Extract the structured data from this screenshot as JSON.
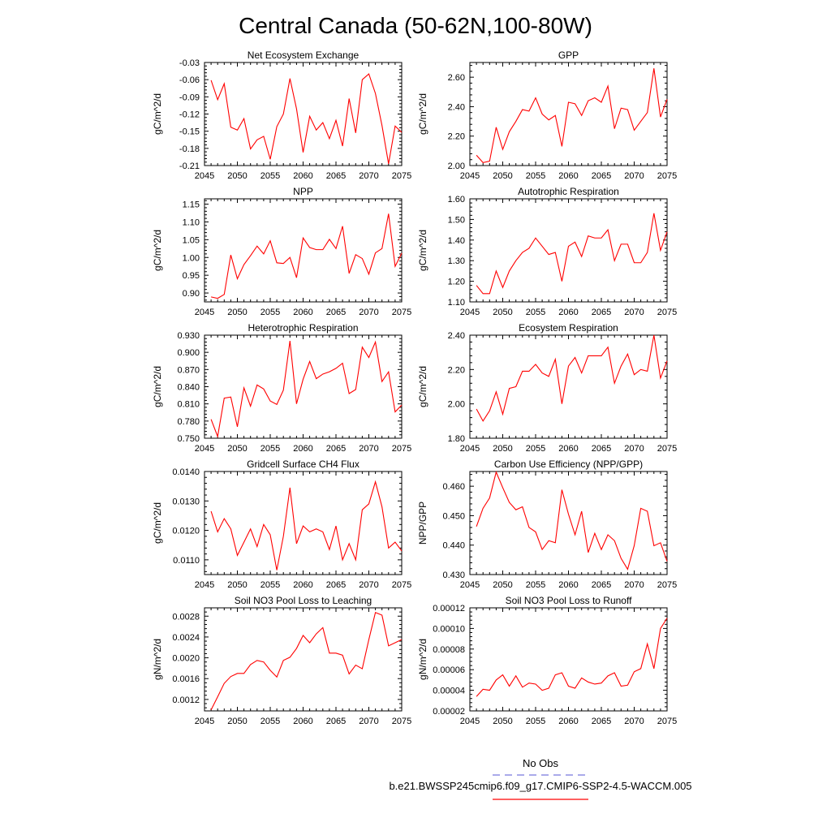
{
  "figure": {
    "title": "Central Canada (50-62N,100-80W)",
    "legend": [
      {
        "label": "No Obs",
        "color": "#7777dd",
        "dash": "dashed"
      },
      {
        "label": "b.e21.BWSSP245cmip6.f09_g17.CMIP6-SSP2-4.5-WACCM.005",
        "color": "#ff0000",
        "dash": "solid"
      }
    ]
  },
  "chart_data": [
    {
      "type": "line",
      "title": "Net Ecosystem Exchange",
      "ylabel": "gC/m^2/d",
      "xlim": [
        2045,
        2075
      ],
      "ylim": [
        -0.21,
        -0.03
      ],
      "xticks": [
        2045,
        2050,
        2055,
        2060,
        2065,
        2070,
        2075
      ],
      "xtick_labels": [
        "2045",
        "2050",
        "2055",
        "2060",
        "2065",
        "2070",
        "2075"
      ],
      "yticks": [
        -0.21,
        -0.18,
        -0.15,
        -0.12,
        -0.09,
        -0.06,
        -0.03
      ],
      "ytick_labels": [
        "-0.21",
        "-0.18",
        "-0.15",
        "-0.12",
        "-0.09",
        "-0.06",
        "-0.03"
      ],
      "series": [
        {
          "color": "#ff0000",
          "x": [
            2046,
            2047,
            2048,
            2049,
            2050,
            2051,
            2052,
            2053,
            2054,
            2055,
            2056,
            2057,
            2058,
            2059,
            2060,
            2061,
            2062,
            2063,
            2064,
            2065,
            2066,
            2067,
            2068,
            2069,
            2070,
            2071,
            2072,
            2073,
            2074,
            2075
          ],
          "y": [
            -0.061,
            -0.095,
            -0.067,
            -0.143,
            -0.148,
            -0.128,
            -0.181,
            -0.165,
            -0.159,
            -0.199,
            -0.142,
            -0.12,
            -0.058,
            -0.111,
            -0.187,
            -0.124,
            -0.148,
            -0.135,
            -0.163,
            -0.131,
            -0.176,
            -0.093,
            -0.153,
            -0.06,
            -0.05,
            -0.084,
            -0.14,
            -0.207,
            -0.141,
            -0.152
          ]
        }
      ]
    },
    {
      "type": "line",
      "title": "GPP",
      "ylabel": "gC/m^2/d",
      "xlim": [
        2045,
        2075
      ],
      "ylim": [
        2.0,
        2.7
      ],
      "xticks": [
        2045,
        2050,
        2055,
        2060,
        2065,
        2070,
        2075
      ],
      "xtick_labels": [
        "2045",
        "2050",
        "2055",
        "2060",
        "2065",
        "2070",
        "2075"
      ],
      "yticks": [
        2.0,
        2.2,
        2.4,
        2.6
      ],
      "ytick_labels": [
        "2.00",
        "2.20",
        "2.40",
        "2.60"
      ],
      "series": [
        {
          "color": "#ff0000",
          "x": [
            2046,
            2047,
            2048,
            2049,
            2050,
            2051,
            2052,
            2053,
            2054,
            2055,
            2056,
            2057,
            2058,
            2059,
            2060,
            2061,
            2062,
            2063,
            2064,
            2065,
            2066,
            2067,
            2068,
            2069,
            2070,
            2071,
            2072,
            2073,
            2074,
            2075
          ],
          "y": [
            2.07,
            2.02,
            2.03,
            2.26,
            2.11,
            2.23,
            2.3,
            2.38,
            2.37,
            2.46,
            2.35,
            2.31,
            2.34,
            2.13,
            2.43,
            2.42,
            2.34,
            2.44,
            2.46,
            2.43,
            2.54,
            2.25,
            2.39,
            2.38,
            2.24,
            2.3,
            2.36,
            2.66,
            2.33,
            2.45
          ]
        }
      ]
    },
    {
      "type": "line",
      "title": "NPP",
      "ylabel": "gC/m^2/d",
      "xlim": [
        2045,
        2075
      ],
      "ylim": [
        0.875,
        1.165
      ],
      "xticks": [
        2045,
        2050,
        2055,
        2060,
        2065,
        2070,
        2075
      ],
      "xtick_labels": [
        "2045",
        "2050",
        "2055",
        "2060",
        "2065",
        "2070",
        "2075"
      ],
      "yticks": [
        0.9,
        0.95,
        1.0,
        1.05,
        1.1,
        1.15
      ],
      "ytick_labels": [
        "0.90",
        "0.95",
        "1.00",
        "1.05",
        "1.10",
        "1.15"
      ],
      "series": [
        {
          "color": "#ff0000",
          "x": [
            2046,
            2047,
            2048,
            2049,
            2050,
            2051,
            2052,
            2053,
            2054,
            2055,
            2056,
            2057,
            2058,
            2059,
            2060,
            2061,
            2062,
            2063,
            2064,
            2065,
            2066,
            2067,
            2068,
            2069,
            2070,
            2071,
            2072,
            2073,
            2074,
            2075
          ],
          "y": [
            0.889,
            0.885,
            0.896,
            1.007,
            0.94,
            0.98,
            1.005,
            1.032,
            1.01,
            1.047,
            0.985,
            0.983,
            1.0,
            0.943,
            1.055,
            1.028,
            1.022,
            1.022,
            1.051,
            1.025,
            1.088,
            0.955,
            1.008,
            0.997,
            0.953,
            1.013,
            1.025,
            1.123,
            0.975,
            1.012
          ]
        }
      ]
    },
    {
      "type": "line",
      "title": "Autotrophic Respiration",
      "ylabel": "gC/m^2/d",
      "xlim": [
        2045,
        2075
      ],
      "ylim": [
        1.1,
        1.6
      ],
      "xticks": [
        2045,
        2050,
        2055,
        2060,
        2065,
        2070,
        2075
      ],
      "xtick_labels": [
        "2045",
        "2050",
        "2055",
        "2060",
        "2065",
        "2070",
        "2075"
      ],
      "yticks": [
        1.1,
        1.2,
        1.3,
        1.4,
        1.5,
        1.6
      ],
      "ytick_labels": [
        "1.10",
        "1.20",
        "1.30",
        "1.40",
        "1.50",
        "1.60"
      ],
      "series": [
        {
          "color": "#ff0000",
          "x": [
            2046,
            2047,
            2048,
            2049,
            2050,
            2051,
            2052,
            2053,
            2054,
            2055,
            2056,
            2057,
            2058,
            2059,
            2060,
            2061,
            2062,
            2063,
            2064,
            2065,
            2066,
            2067,
            2068,
            2069,
            2070,
            2071,
            2072,
            2073,
            2074,
            2075
          ],
          "y": [
            1.18,
            1.14,
            1.14,
            1.25,
            1.17,
            1.25,
            1.3,
            1.34,
            1.36,
            1.41,
            1.37,
            1.33,
            1.34,
            1.2,
            1.37,
            1.39,
            1.32,
            1.42,
            1.41,
            1.41,
            1.45,
            1.3,
            1.38,
            1.38,
            1.29,
            1.29,
            1.34,
            1.53,
            1.35,
            1.44
          ]
        }
      ]
    },
    {
      "type": "line",
      "title": "Heterotrophic Respiration",
      "ylabel": "gC/m^2/d",
      "xlim": [
        2045,
        2075
      ],
      "ylim": [
        0.75,
        0.93
      ],
      "xticks": [
        2045,
        2050,
        2055,
        2060,
        2065,
        2070,
        2075
      ],
      "xtick_labels": [
        "2045",
        "2050",
        "2055",
        "2060",
        "2065",
        "2070",
        "2075"
      ],
      "yticks": [
        0.75,
        0.78,
        0.81,
        0.84,
        0.87,
        0.9,
        0.93
      ],
      "ytick_labels": [
        "0.750",
        "0.780",
        "0.810",
        "0.840",
        "0.870",
        "0.900",
        "0.930"
      ],
      "series": [
        {
          "color": "#ff0000",
          "x": [
            2046,
            2047,
            2048,
            2049,
            2050,
            2051,
            2052,
            2053,
            2054,
            2055,
            2056,
            2057,
            2058,
            2059,
            2060,
            2061,
            2062,
            2063,
            2064,
            2065,
            2066,
            2067,
            2068,
            2069,
            2070,
            2071,
            2072,
            2073,
            2074,
            2075
          ],
          "y": [
            0.783,
            0.753,
            0.82,
            0.822,
            0.77,
            0.838,
            0.806,
            0.843,
            0.836,
            0.815,
            0.809,
            0.834,
            0.92,
            0.81,
            0.853,
            0.884,
            0.854,
            0.862,
            0.866,
            0.872,
            0.881,
            0.828,
            0.835,
            0.909,
            0.891,
            0.918,
            0.849,
            0.866,
            0.796,
            0.808
          ]
        }
      ]
    },
    {
      "type": "line",
      "title": "Ecosystem Respiration",
      "ylabel": "gC/m^2/d",
      "xlim": [
        2045,
        2075
      ],
      "ylim": [
        1.8,
        2.4
      ],
      "xticks": [
        2045,
        2050,
        2055,
        2060,
        2065,
        2070,
        2075
      ],
      "xtick_labels": [
        "2045",
        "2050",
        "2055",
        "2060",
        "2065",
        "2070",
        "2075"
      ],
      "yticks": [
        1.8,
        2.0,
        2.2,
        2.4
      ],
      "ytick_labels": [
        "1.80",
        "2.00",
        "2.20",
        "2.40"
      ],
      "series": [
        {
          "color": "#ff0000",
          "x": [
            2046,
            2047,
            2048,
            2049,
            2050,
            2051,
            2052,
            2053,
            2054,
            2055,
            2056,
            2057,
            2058,
            2059,
            2060,
            2061,
            2062,
            2063,
            2064,
            2065,
            2066,
            2067,
            2068,
            2069,
            2070,
            2071,
            2072,
            2073,
            2074,
            2075
          ],
          "y": [
            1.97,
            1.9,
            1.96,
            2.07,
            1.94,
            2.09,
            2.1,
            2.19,
            2.19,
            2.23,
            2.18,
            2.16,
            2.26,
            2.0,
            2.22,
            2.27,
            2.18,
            2.28,
            2.28,
            2.28,
            2.33,
            2.12,
            2.22,
            2.29,
            2.17,
            2.2,
            2.19,
            2.4,
            2.15,
            2.25
          ]
        }
      ]
    },
    {
      "type": "line",
      "title": "Gridcell Surface CH4 Flux",
      "ylabel": "gC/m^2/d",
      "xlim": [
        2045,
        2075
      ],
      "ylim": [
        0.0105,
        0.014
      ],
      "xticks": [
        2045,
        2050,
        2055,
        2060,
        2065,
        2070,
        2075
      ],
      "xtick_labels": [
        "2045",
        "2050",
        "2055",
        "2060",
        "2065",
        "2070",
        "2075"
      ],
      "yticks": [
        0.011,
        0.012,
        0.013,
        0.014
      ],
      "ytick_labels": [
        "0.0110",
        "0.0120",
        "0.0130",
        "0.0140"
      ],
      "series": [
        {
          "color": "#ff0000",
          "x": [
            2046,
            2047,
            2048,
            2049,
            2050,
            2051,
            2052,
            2053,
            2054,
            2055,
            2056,
            2057,
            2058,
            2059,
            2060,
            2061,
            2062,
            2063,
            2064,
            2065,
            2066,
            2067,
            2068,
            2069,
            2070,
            2071,
            2072,
            2073,
            2074,
            2075
          ],
          "y": [
            0.01265,
            0.01195,
            0.0124,
            0.01205,
            0.01115,
            0.0116,
            0.01205,
            0.01145,
            0.0122,
            0.01185,
            0.01065,
            0.0118,
            0.01345,
            0.01155,
            0.01215,
            0.01195,
            0.01205,
            0.01195,
            0.01135,
            0.01215,
            0.011,
            0.01155,
            0.011,
            0.0127,
            0.0129,
            0.01365,
            0.0128,
            0.0114,
            0.0116,
            0.0113
          ]
        }
      ]
    },
    {
      "type": "line",
      "title": "Carbon Use Efficiency (NPP/GPP)",
      "ylabel": "NPP/GPP",
      "xlim": [
        2045,
        2075
      ],
      "ylim": [
        0.43,
        0.465
      ],
      "xticks": [
        2045,
        2050,
        2055,
        2060,
        2065,
        2070,
        2075
      ],
      "xtick_labels": [
        "2045",
        "2050",
        "2055",
        "2060",
        "2065",
        "2070",
        "2075"
      ],
      "yticks": [
        0.43,
        0.44,
        0.45,
        0.46
      ],
      "ytick_labels": [
        "0.430",
        "0.440",
        "0.450",
        "0.460"
      ],
      "series": [
        {
          "color": "#ff0000",
          "x": [
            2046,
            2047,
            2048,
            2049,
            2050,
            2051,
            2052,
            2053,
            2054,
            2055,
            2056,
            2057,
            2058,
            2059,
            2060,
            2061,
            2062,
            2063,
            2064,
            2065,
            2066,
            2067,
            2068,
            2069,
            2070,
            2071,
            2072,
            2073,
            2074,
            2075
          ],
          "y": [
            0.4463,
            0.4525,
            0.456,
            0.4648,
            0.4595,
            0.4545,
            0.452,
            0.453,
            0.446,
            0.4445,
            0.4385,
            0.4415,
            0.4408,
            0.4588,
            0.4505,
            0.4435,
            0.4515,
            0.4375,
            0.444,
            0.4385,
            0.4435,
            0.4415,
            0.4355,
            0.4318,
            0.4398,
            0.4525,
            0.4515,
            0.4398,
            0.4408,
            0.4345
          ]
        }
      ]
    },
    {
      "type": "line",
      "title": "Soil NO3 Pool Loss to Leaching",
      "ylabel": "gN/m^2/d",
      "xlim": [
        2045,
        2075
      ],
      "ylim": [
        0.00098,
        0.00296
      ],
      "xticks": [
        2045,
        2050,
        2055,
        2060,
        2065,
        2070,
        2075
      ],
      "xtick_labels": [
        "2045",
        "2050",
        "2055",
        "2060",
        "2065",
        "2070",
        "2075"
      ],
      "yticks": [
        0.0012,
        0.0016,
        0.002,
        0.0024,
        0.0028
      ],
      "ytick_labels": [
        "0.0012",
        "0.0016",
        "0.0020",
        "0.0024",
        "0.0028"
      ],
      "series": [
        {
          "color": "#ff0000",
          "x": [
            2046,
            2047,
            2048,
            2049,
            2050,
            2051,
            2052,
            2053,
            2054,
            2055,
            2056,
            2057,
            2058,
            2059,
            2060,
            2061,
            2062,
            2063,
            2064,
            2065,
            2066,
            2067,
            2068,
            2069,
            2070,
            2071,
            2072,
            2073,
            2074,
            2075
          ],
          "y": [
            0.001,
            0.00125,
            0.00151,
            0.00164,
            0.0017,
            0.0017,
            0.00187,
            0.00195,
            0.00192,
            0.00176,
            0.00163,
            0.00195,
            0.00201,
            0.00218,
            0.00243,
            0.00229,
            0.00246,
            0.00258,
            0.00209,
            0.00209,
            0.00205,
            0.00169,
            0.00186,
            0.00179,
            0.00235,
            0.00287,
            0.00282,
            0.00223,
            0.00229,
            0.00235
          ]
        }
      ]
    },
    {
      "type": "line",
      "title": "Soil NO3 Pool Loss to Runoff",
      "ylabel": "gN/m^2/d",
      "xlim": [
        2045,
        2075
      ],
      "ylim": [
        2e-05,
        0.00012
      ],
      "xticks": [
        2045,
        2050,
        2055,
        2060,
        2065,
        2070,
        2075
      ],
      "xtick_labels": [
        "2045",
        "2050",
        "2055",
        "2060",
        "2065",
        "2070",
        "2075"
      ],
      "yticks": [
        2e-05,
        4e-05,
        6e-05,
        8e-05,
        0.0001,
        0.00012
      ],
      "ytick_labels": [
        "0.00002",
        "0.00004",
        "0.00006",
        "0.00008",
        "0.00010",
        "0.00012"
      ],
      "series": [
        {
          "color": "#ff0000",
          "x": [
            2046,
            2047,
            2048,
            2049,
            2050,
            2051,
            2052,
            2053,
            2054,
            2055,
            2056,
            2057,
            2058,
            2059,
            2060,
            2061,
            2062,
            2063,
            2064,
            2065,
            2066,
            2067,
            2068,
            2069,
            2070,
            2071,
            2072,
            2073,
            2074,
            2075
          ],
          "y": [
            3.4e-05,
            4.1e-05,
            4e-05,
            5e-05,
            5.5e-05,
            4.4e-05,
            5.4e-05,
            4.3e-05,
            4.7e-05,
            4.6e-05,
            4e-05,
            4.2e-05,
            5.5e-05,
            5.7e-05,
            4.4e-05,
            4.2e-05,
            5.2e-05,
            4.8e-05,
            4.6e-05,
            4.7e-05,
            5.4e-05,
            5.7e-05,
            4.4e-05,
            4.5e-05,
            5.8e-05,
            6.1e-05,
            8.5e-05,
            6.1e-05,
            0.0001,
            0.00011
          ]
        }
      ]
    }
  ]
}
